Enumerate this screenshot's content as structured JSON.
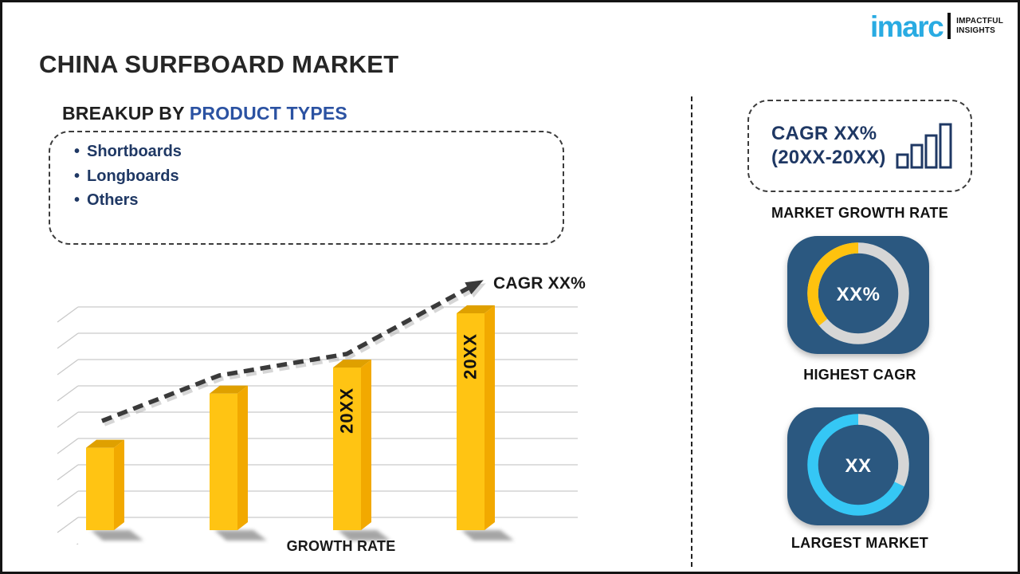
{
  "logo": {
    "brand": "imarc",
    "brand_color": "#29ABE2",
    "tagline_line1": "IMPACTFUL",
    "tagline_line2": "INSIGHTS"
  },
  "title": "CHINA SURFBOARD MARKET",
  "breakup": {
    "heading_prefix": "BREAKUP BY ",
    "heading_highlight": "PRODUCT TYPES",
    "items": [
      "Shortboards",
      "Longboards",
      "Others"
    ]
  },
  "chart_data": {
    "type": "bar",
    "title": "",
    "xlabel": "GROWTH RATE",
    "ylabel": "",
    "categories": [
      "",
      "",
      "20XX",
      "20XX"
    ],
    "bar_labels": [
      "",
      "",
      "20XX",
      "20XX"
    ],
    "values_relative_pct": [
      38,
      63,
      75,
      100
    ],
    "value_axis_ticks_shown": false,
    "gridlines": 9,
    "trend_label": "CAGR XX%",
    "trend_style": "dashed-arrow-ascending",
    "bar_color": "#FFC413",
    "bar_side_color": "#F2A900",
    "bar_top_color": "#DFA000",
    "trend_color": "#3a3a3a"
  },
  "right_panel": {
    "cagr_box": {
      "line1": "CAGR XX%",
      "line2": "(20XX-20XX)",
      "icon": "ascending-bars-icon",
      "text_color": "#1F3864"
    },
    "market_growth_rate_label": "MARKET GROWTH RATE",
    "highest_cagr": {
      "value": "XX%",
      "label": "HIGHEST CAGR",
      "card_color": "#2B5880",
      "ring_color": "#D6D6D6",
      "arc_color": "#FFC20E",
      "arc_pct": 36,
      "arc_dir": "ccw"
    },
    "largest_market": {
      "value": "XX",
      "label": "LARGEST MARKET",
      "card_color": "#2B5880",
      "ring_color": "#35C7F5",
      "arc_color": "#D6D6D6",
      "arc_pct": 32,
      "arc_dir": "cw"
    }
  }
}
